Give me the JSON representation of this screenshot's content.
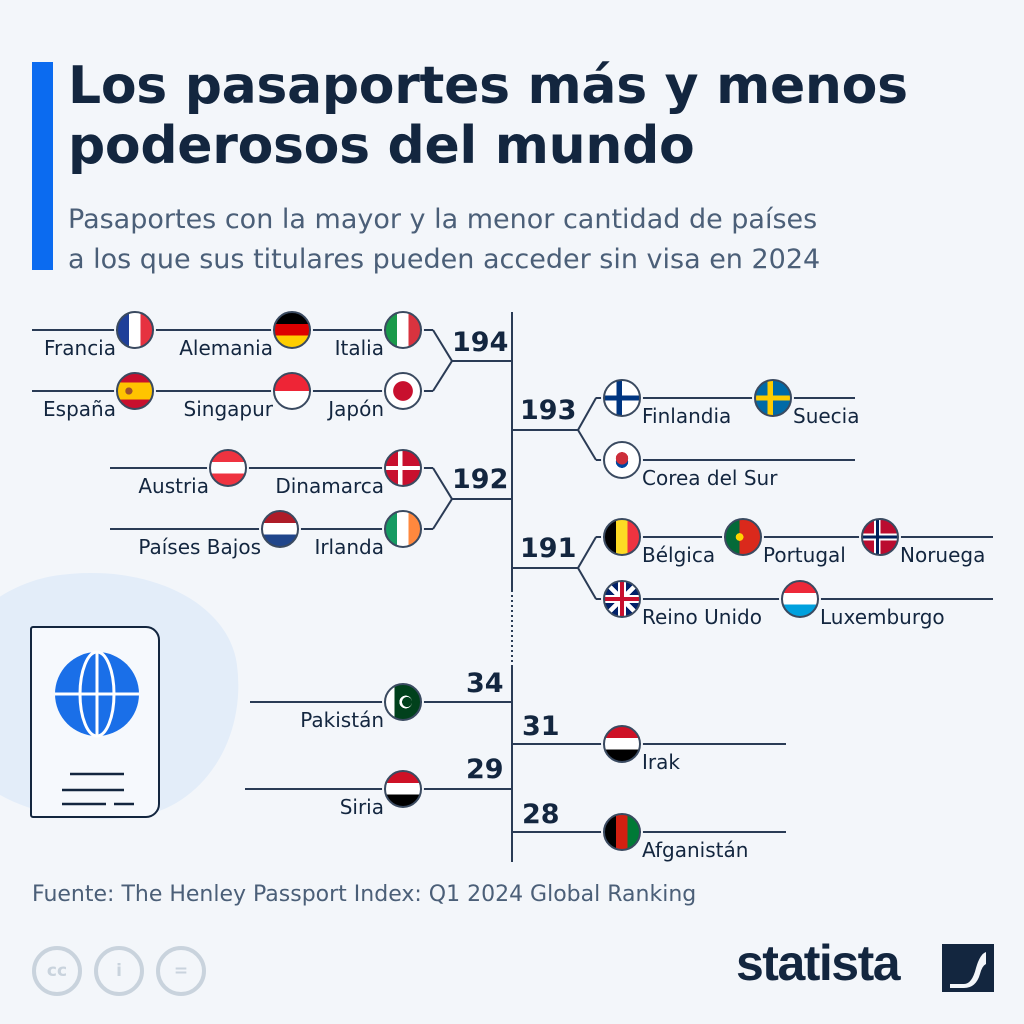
{
  "header": {
    "title_line1": "Los pasaportes más y menos",
    "title_line2": "poderosos del mundo",
    "subtitle_line1": "Pasaportes con la mayor y la menor cantidad de países",
    "subtitle_line2": "a los que sus titulares pueden acceder sin visa en 2024"
  },
  "groups": [
    {
      "score": "194",
      "countries": [
        {
          "name": "Francia",
          "flag": "france-flag-icon"
        },
        {
          "name": "Alemania",
          "flag": "germany-flag-icon"
        },
        {
          "name": "Italia",
          "flag": "italy-flag-icon"
        },
        {
          "name": "España",
          "flag": "spain-flag-icon"
        },
        {
          "name": "Singapur",
          "flag": "singapore-flag-icon"
        },
        {
          "name": "Japón",
          "flag": "japan-flag-icon"
        }
      ]
    },
    {
      "score": "193",
      "countries": [
        {
          "name": "Finlandia",
          "flag": "finland-flag-icon"
        },
        {
          "name": "Suecia",
          "flag": "sweden-flag-icon"
        },
        {
          "name": "Corea del Sur",
          "flag": "south-korea-flag-icon"
        }
      ]
    },
    {
      "score": "192",
      "countries": [
        {
          "name": "Austria",
          "flag": "austria-flag-icon"
        },
        {
          "name": "Dinamarca",
          "flag": "denmark-flag-icon"
        },
        {
          "name": "Países Bajos",
          "flag": "netherlands-flag-icon"
        },
        {
          "name": "Irlanda",
          "flag": "ireland-flag-icon"
        }
      ]
    },
    {
      "score": "191",
      "countries": [
        {
          "name": "Bélgica",
          "flag": "belgium-flag-icon"
        },
        {
          "name": "Portugal",
          "flag": "portugal-flag-icon"
        },
        {
          "name": "Noruega",
          "flag": "norway-flag-icon"
        },
        {
          "name": "Reino Unido",
          "flag": "uk-flag-icon"
        },
        {
          "name": "Luxemburgo",
          "flag": "luxembourg-flag-icon"
        }
      ]
    },
    {
      "score": "34",
      "countries": [
        {
          "name": "Pakistán",
          "flag": "pakistan-flag-icon"
        }
      ]
    },
    {
      "score": "31",
      "countries": [
        {
          "name": "Irak",
          "flag": "iraq-flag-icon"
        }
      ]
    },
    {
      "score": "29",
      "countries": [
        {
          "name": "Siria",
          "flag": "syria-flag-icon"
        }
      ]
    },
    {
      "score": "28",
      "countries": [
        {
          "name": "Afganistán",
          "flag": "afghanistan-flag-icon"
        }
      ]
    }
  ],
  "footer": {
    "source": "Fuente: The Henley Passport Index: Q1 2024 Global Ranking",
    "brand": "statista",
    "license_icons": [
      "cc-icon",
      "attribution-icon",
      "no-derivatives-icon"
    ]
  },
  "colors": {
    "accent": "#0b6bf0",
    "text": "#13263f",
    "subtle": "#4b5f78"
  }
}
